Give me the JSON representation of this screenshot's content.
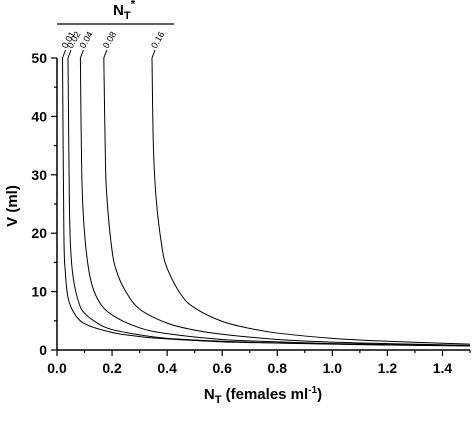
{
  "chart_data": {
    "type": "line",
    "title": "",
    "xlabel": "N",
    "xlabel_sub": "T",
    "xlabel_rest": " (females ml",
    "xlabel_sup": "-1",
    "xlabel_close": ")",
    "ylabel": "V (ml)",
    "xlim": [
      0,
      1.5
    ],
    "ylim": [
      0,
      50
    ],
    "x_ticks": [
      0.0,
      0.2,
      0.4,
      0.6,
      0.8,
      1.0,
      1.2,
      1.4
    ],
    "x_tick_labels": [
      "0.0",
      "0.2",
      "0.4",
      "0.6",
      "0.8",
      "1.0",
      "1.2",
      "1.4"
    ],
    "y_ticks": [
      0,
      10,
      20,
      30,
      40,
      50
    ],
    "y_tick_labels": [
      "0",
      "10",
      "20",
      "30",
      "40",
      "50"
    ],
    "legend": {
      "title_main": "N",
      "title_sub": "T",
      "title_sup": "*",
      "placement": "top-left"
    },
    "series": [
      {
        "name": "0.01",
        "points": [
          [
            0.02,
            50
          ],
          [
            0.025,
            20
          ],
          [
            0.03,
            13.5
          ],
          [
            0.04,
            9
          ],
          [
            0.06,
            6.5
          ],
          [
            0.1,
            4.5
          ],
          [
            0.2,
            3
          ],
          [
            0.3,
            2.3
          ],
          [
            0.4,
            1.9
          ],
          [
            0.6,
            1.4
          ],
          [
            0.8,
            1.2
          ],
          [
            1.0,
            1.0
          ],
          [
            1.2,
            0.85
          ],
          [
            1.5,
            0.7
          ]
        ]
      },
      {
        "name": "0.02",
        "points": [
          [
            0.04,
            50
          ],
          [
            0.045,
            25
          ],
          [
            0.05,
            17
          ],
          [
            0.06,
            12
          ],
          [
            0.08,
            8
          ],
          [
            0.1,
            6.3
          ],
          [
            0.15,
            4.5
          ],
          [
            0.2,
            3.5
          ],
          [
            0.3,
            2.6
          ],
          [
            0.4,
            2.0
          ],
          [
            0.6,
            1.5
          ],
          [
            0.8,
            1.2
          ],
          [
            1.0,
            1.05
          ],
          [
            1.2,
            0.9
          ],
          [
            1.5,
            0.7
          ]
        ]
      },
      {
        "name": "0.04",
        "points": [
          [
            0.085,
            50
          ],
          [
            0.09,
            30
          ],
          [
            0.1,
            20
          ],
          [
            0.12,
            12.5
          ],
          [
            0.15,
            8.5
          ],
          [
            0.2,
            6
          ],
          [
            0.3,
            3.8
          ],
          [
            0.4,
            2.8
          ],
          [
            0.6,
            1.8
          ],
          [
            0.8,
            1.4
          ],
          [
            1.0,
            1.1
          ],
          [
            1.2,
            0.95
          ],
          [
            1.5,
            0.75
          ]
        ]
      },
      {
        "name": "0.08",
        "points": [
          [
            0.17,
            50
          ],
          [
            0.175,
            35
          ],
          [
            0.18,
            27
          ],
          [
            0.2,
            17
          ],
          [
            0.22,
            13
          ],
          [
            0.25,
            10
          ],
          [
            0.3,
            7
          ],
          [
            0.4,
            4.6
          ],
          [
            0.5,
            3.4
          ],
          [
            0.6,
            2.7
          ],
          [
            0.8,
            1.8
          ],
          [
            1.0,
            1.35
          ],
          [
            1.2,
            1.1
          ],
          [
            1.5,
            0.8
          ]
        ]
      },
      {
        "name": "0.16",
        "points": [
          [
            0.345,
            50
          ],
          [
            0.35,
            35
          ],
          [
            0.36,
            26
          ],
          [
            0.38,
            18
          ],
          [
            0.4,
            14
          ],
          [
            0.45,
            9.5
          ],
          [
            0.5,
            7.2
          ],
          [
            0.6,
            4.9
          ],
          [
            0.7,
            3.7
          ],
          [
            0.8,
            2.9
          ],
          [
            1.0,
            2.0
          ],
          [
            1.2,
            1.5
          ],
          [
            1.5,
            1.0
          ]
        ]
      }
    ]
  }
}
